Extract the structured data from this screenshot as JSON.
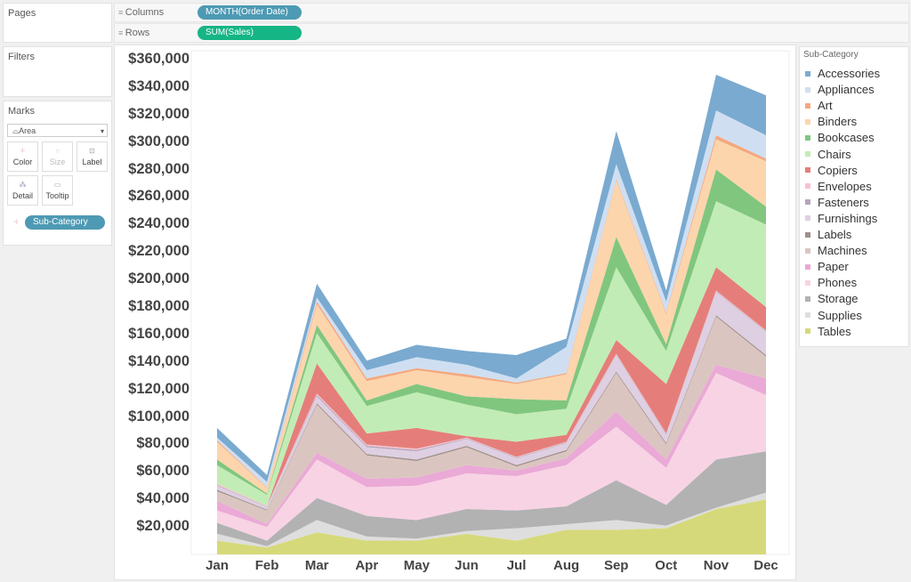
{
  "panels": {
    "pages": "Pages",
    "filters": "Filters",
    "marks": "Marks"
  },
  "shelves": {
    "columns_label": "Columns",
    "columns_pill": "MONTH(Order Date)",
    "rows_label": "Rows",
    "rows_pill": "SUM(Sales)",
    "columns_color": "#4e9ab4",
    "rows_color": "#16b585"
  },
  "marks": {
    "type": "Area",
    "color": "Color",
    "size": "Size",
    "label": "Label",
    "detail": "Detail",
    "tooltip": "Tooltip",
    "color_field": "Sub-Category"
  },
  "legend": {
    "title": "Sub-Category"
  },
  "chart_data": {
    "type": "area",
    "stacked": true,
    "xlabel": "",
    "ylabel": "",
    "categories": [
      "Jan",
      "Feb",
      "Mar",
      "Apr",
      "May",
      "Jun",
      "Jul",
      "Aug",
      "Sep",
      "Oct",
      "Nov",
      "Dec"
    ],
    "ylim": [
      0,
      365000
    ],
    "yticks": [
      20000,
      40000,
      60000,
      80000,
      100000,
      120000,
      140000,
      160000,
      180000,
      200000,
      220000,
      240000,
      260000,
      280000,
      300000,
      320000,
      340000,
      360000
    ],
    "ytick_labels": [
      "$20,000",
      "$40,000",
      "$60,000",
      "$80,000",
      "$100,000",
      "$120,000",
      "$140,000",
      "$160,000",
      "$180,000",
      "$200,000",
      "$220,000",
      "$240,000",
      "$260,000",
      "$280,000",
      "$300,000",
      "$320,000",
      "$340,000",
      "$360,000"
    ],
    "grid": false,
    "legend_position": "right",
    "series": [
      {
        "name": "Accessories",
        "color": "#7aaad0",
        "values": [
          7000,
          5000,
          10000,
          7000,
          9000,
          10000,
          17000,
          6000,
          24000,
          8000,
          26000,
          29000
        ]
      },
      {
        "name": "Appliances",
        "color": "#cfdff1",
        "values": [
          2000,
          4000,
          3000,
          6000,
          8000,
          7000,
          3000,
          19000,
          11000,
          8000,
          18000,
          17000
        ]
      },
      {
        "name": "Art",
        "color": "#f3a880",
        "values": [
          1000,
          500,
          2000,
          2000,
          1500,
          2000,
          1000,
          1000,
          1000,
          1000,
          3000,
          2000
        ]
      },
      {
        "name": "Binders",
        "color": "#fcd5ac",
        "values": [
          13000,
          4000,
          15000,
          14000,
          10000,
          14000,
          11000,
          19000,
          41000,
          22000,
          22000,
          33000
        ]
      },
      {
        "name": "Bookcases",
        "color": "#80c67f",
        "values": [
          4000,
          1000,
          6000,
          4000,
          6000,
          6000,
          11000,
          6000,
          22000,
          5000,
          23000,
          13000
        ]
      },
      {
        "name": "Chairs",
        "color": "#c2ecb5",
        "values": [
          13500,
          8000,
          22000,
          20000,
          26000,
          23000,
          20000,
          19000,
          53000,
          24000,
          48000,
          60000
        ]
      },
      {
        "name": "Copiers",
        "color": "#e57e7a",
        "values": [
          0,
          0,
          22000,
          8000,
          15000,
          1000,
          11000,
          5000,
          10000,
          36000,
          17000,
          17000
        ]
      },
      {
        "name": "Envelopes",
        "color": "#f6c2cf",
        "values": [
          1000,
          500,
          1000,
          1000,
          1000,
          500,
          500,
          500,
          500,
          500,
          500,
          500
        ]
      },
      {
        "name": "Fasteners",
        "color": "#b7a5bb",
        "values": [
          500,
          300,
          1000,
          1000,
          1000,
          500,
          500,
          500,
          500,
          500,
          500,
          500
        ]
      },
      {
        "name": "Furnishings",
        "color": "#decfe2",
        "values": [
          3000,
          2000,
          5000,
          5000,
          6000,
          5000,
          5000,
          5000,
          12000,
          6000,
          17000,
          17000
        ]
      },
      {
        "name": "Labels",
        "color": "#a08f8a",
        "values": [
          1000,
          500,
          1000,
          1000,
          1000,
          1000,
          1000,
          1000,
          1000,
          1000,
          1000,
          1000
        ]
      },
      {
        "name": "Machines",
        "color": "#dbc5c0",
        "values": [
          7000,
          10000,
          35000,
          17000,
          12000,
          13000,
          3000,
          5000,
          28000,
          11000,
          35000,
          16000
        ]
      },
      {
        "name": "Paper",
        "color": "#eaa9d6",
        "values": [
          7000,
          2000,
          5000,
          6000,
          6000,
          6000,
          4000,
          5000,
          11000,
          6000,
          6000,
          12000
        ]
      },
      {
        "name": "Phones",
        "color": "#f8d3e4",
        "values": [
          9000,
          10000,
          28000,
          21000,
          25000,
          26000,
          25000,
          30000,
          39000,
          27000,
          63000,
          41000
        ]
      },
      {
        "name": "Storage",
        "color": "#b2b2b3",
        "values": [
          8000,
          4000,
          16000,
          15000,
          13500,
          16000,
          13000,
          13000,
          29000,
          15000,
          35000,
          30000
        ]
      },
      {
        "name": "Supplies",
        "color": "#dedede",
        "values": [
          5000,
          1000,
          9000,
          3000,
          1500,
          2000,
          9000,
          4000,
          7000,
          2000,
          1000,
          5000
        ]
      },
      {
        "name": "Tables",
        "color": "#d6d97a",
        "values": [
          10000,
          5000,
          16000,
          10000,
          10000,
          15000,
          10000,
          18000,
          18000,
          19000,
          33000,
          40000
        ]
      }
    ]
  }
}
